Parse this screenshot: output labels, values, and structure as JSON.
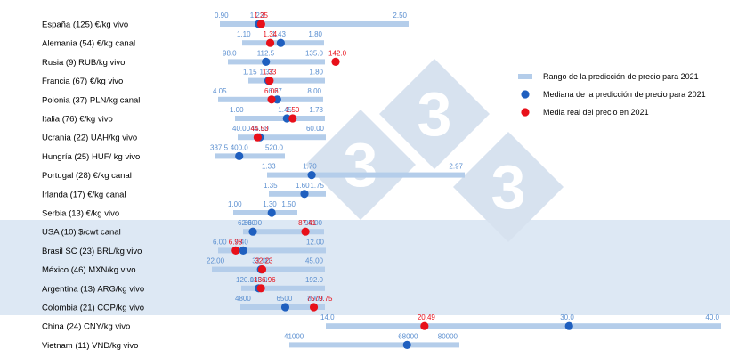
{
  "chart_data": {
    "type": "range",
    "colors": {
      "range": "#b4cdea",
      "median": "#1f5fbf",
      "real": "#e8101a",
      "range_label": "#5b8fd0",
      "real_label": "#e8101a",
      "band": "#dde8f4",
      "watermark": "#d7e2ef"
    },
    "legend": {
      "position": "right",
      "items": [
        {
          "key": "range",
          "label": "Rango de la predicción de precio para 2021"
        },
        {
          "key": "median",
          "label": "Mediana de la predicción de precio para 2021"
        },
        {
          "key": "real",
          "label": "Media real del precio en 2021"
        }
      ]
    },
    "watermark": "3",
    "categories": [
      {
        "label": "España (125) €/kg vivo",
        "min": 0.9,
        "median": 1.23,
        "real": 1.25,
        "max": 2.5,
        "labels": {
          "min": "0.90",
          "median": "1.23",
          "real": "1.25",
          "max": "2.50"
        }
      },
      {
        "label": "Alemania (54) €/kg canal",
        "min": 1.1,
        "median": 1.43,
        "real": 1.34,
        "max": 1.8,
        "labels": {
          "min": "1.10",
          "median": "1.43",
          "real": "1.34",
          "max": "1.80"
        }
      },
      {
        "label": "Rusia (9) RUB/kg vivo",
        "min": 98.0,
        "median": 112.5,
        "real": 142.0,
        "max": 135.0,
        "labels": {
          "min": "98.0",
          "median": "112.5",
          "real": "142.0",
          "max": "135.0"
        }
      },
      {
        "label": "Francia (67) €/kg vivo",
        "min": 1.15,
        "median": 1.32,
        "real": 1.33,
        "max": 1.8,
        "labels": {
          "min": "1.15",
          "median": "1.32",
          "real": "1.33",
          "max": "1.80"
        }
      },
      {
        "label": "Polonia (37) PLN/kg canal",
        "min": 4.05,
        "median": 6.27,
        "real": 6.06,
        "max": 8.0,
        "labels": {
          "min": "4.05",
          "median": "6.27",
          "real": "6.06",
          "max": "8.00"
        }
      },
      {
        "label": "Italia (76) €/kg vivo",
        "min": 1.0,
        "median": 1.45,
        "real": 1.5,
        "max": 1.78,
        "labels": {
          "min": "1.00",
          "median": "1.45",
          "real": "1.50",
          "max": "1.78"
        }
      },
      {
        "label": "Ucrania (22) UAH/kg vivo",
        "min": 40.0,
        "median": 45.0,
        "real": 44.53,
        "max": 60.0,
        "labels": {
          "min": "40.00",
          "median": "45.00",
          "real": "44.53",
          "max": "60.00"
        }
      },
      {
        "label": "Hungría (25) HUF/ kg vivo",
        "min": 337.5,
        "median": 400.0,
        "real": null,
        "max": 520.0,
        "labels": {
          "min": "337.5",
          "median": "400.0",
          "real": "",
          "max": "520.0"
        }
      },
      {
        "label": "Portugal (28) €/kg canal",
        "min": 1.33,
        "median": 1.7,
        "real": null,
        "max": 2.97,
        "labels": {
          "min": "1.33",
          "median": "1.70",
          "real": "",
          "max": "2.97"
        }
      },
      {
        "label": "Irlanda (17) €/kg canal",
        "min": 1.35,
        "median": 1.6,
        "real": null,
        "max": 1.75,
        "labels": {
          "min": "1.35",
          "median": "1.60",
          "real": "",
          "max": "1.75"
        }
      },
      {
        "label": "Serbia (13) €/kg vivo",
        "min": 1.0,
        "median": 1.3,
        "real": null,
        "max": 1.5,
        "labels": {
          "min": "1.00",
          "median": "1.30",
          "real": "",
          "max": "1.50"
        }
      },
      {
        "label": "USA (10) $/cwt canal",
        "min": 62.0,
        "median": 66.0,
        "real": 87.41,
        "max": 95.0,
        "labels": {
          "min": "62.00",
          "median": "66.00",
          "real": "87.41",
          "max": "95.00"
        }
      },
      {
        "label": "Brasil SC (23) BRL/kg vivo",
        "min": 6.0,
        "median": 7.4,
        "real": 6.98,
        "max": 12.0,
        "labels": {
          "min": "6.00",
          "median": "7.40",
          "real": "6.98",
          "max": "12.00"
        }
      },
      {
        "label": "México (46) MXN/kg vivo",
        "min": 22.0,
        "median": 32.0,
        "real": 32.23,
        "max": 45.0,
        "labels": {
          "min": "22.00",
          "median": "32.00",
          "real": "32.23",
          "max": "45.00"
        }
      },
      {
        "label": "Argentina (13) ARG/kg vivo",
        "min": 120.0,
        "median": 135.0,
        "real": 136.96,
        "max": 192.0,
        "labels": {
          "min": "120.0",
          "median": "135.0",
          "real": "136.96",
          "max": "192.0"
        }
      },
      {
        "label": "Colombia (21) COP/kg vivo",
        "min": 4800,
        "median": 6500,
        "real": 7579.75,
        "max": 8000,
        "labels": {
          "min": "4800",
          "median": "6500",
          "real": "7579.75",
          "max": "8000"
        }
      },
      {
        "label": "China (24) CNY/kg vivo",
        "min": 14.0,
        "median": 30.0,
        "real": 20.49,
        "max": 40.0,
        "labels": {
          "min": "14.0",
          "median": "30.0",
          "real": "20.49",
          "max": "40.0"
        }
      },
      {
        "label": "Vietnam (11) VND/kg vivo",
        "min": 41000,
        "median": 68000,
        "real": null,
        "max": 80000,
        "labels": {
          "min": "41000",
          "median": "68000",
          "real": "",
          "max": "80000"
        }
      }
    ]
  }
}
